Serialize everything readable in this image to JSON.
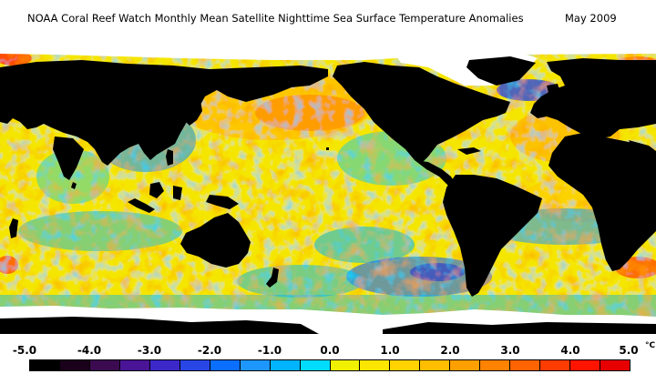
{
  "header": {
    "title": "NOAA Coral Reef Watch Monthly Mean Satellite Nighttime Sea Surface Temperature Anomalies",
    "date": "May 2009"
  },
  "colorbar": {
    "tick_labels": [
      "-5.0",
      "-4.0",
      "-3.0",
      "-2.0",
      "-1.0",
      "0.0",
      "1.0",
      "2.0",
      "3.0",
      "4.0",
      "5.0"
    ],
    "unit": "°C",
    "range": [
      -5.0,
      5.0
    ],
    "colors": [
      "#000000",
      "#1a001a",
      "#3c0a50",
      "#4a1496",
      "#3c28c8",
      "#2846e6",
      "#0a6eff",
      "#1e96ff",
      "#00b4ff",
      "#00dcff",
      "#f0f000",
      "#fae600",
      "#ffd200",
      "#ffbe00",
      "#ffa000",
      "#ff8200",
      "#ff6400",
      "#ff3c00",
      "#ff1400",
      "#e60000"
    ]
  },
  "map": {
    "land_color": "#000000",
    "sea_ice_color": "#ffffff"
  }
}
